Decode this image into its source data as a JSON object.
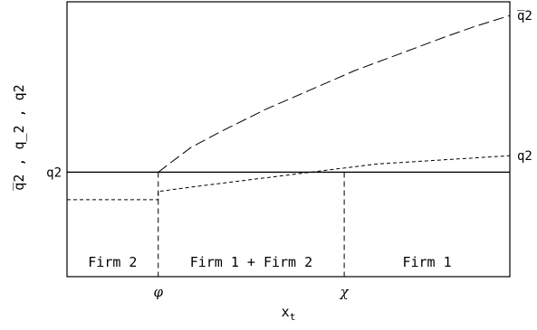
{
  "chart_data": {
    "type": "line",
    "title": "",
    "xlabel": "x",
    "xlabel_sub": "t",
    "ylabel": "q̅2 , q̲2 , q2",
    "xlim": [
      0,
      1
    ],
    "ylim": [
      0,
      1
    ],
    "grid": false,
    "x_ticks": [
      {
        "x": 0.206,
        "label": "φ"
      },
      {
        "x": 0.626,
        "label": "χ"
      }
    ],
    "horizontal_level": {
      "y": 0.38,
      "label": "q2"
    },
    "right_labels": [
      {
        "series": "upper",
        "label": "q̅2"
      },
      {
        "series": "lower",
        "label": "q2"
      }
    ],
    "regions": [
      {
        "label": "Firm 2",
        "x_from": 0.0,
        "x_to": 0.206
      },
      {
        "label": "Firm 1 + Firm 2",
        "x_from": 0.206,
        "x_to": 0.626
      },
      {
        "label": "Firm 1",
        "x_from": 0.626,
        "x_to": 1.0
      }
    ],
    "series": [
      {
        "key": "upper",
        "style": "long-dash",
        "x": [
          0.206,
          0.23,
          0.28,
          0.35,
          0.45,
          0.55,
          0.65,
          0.75,
          0.85,
          0.92,
          1.0
        ],
        "y": [
          0.38,
          0.41,
          0.47,
          0.53,
          0.61,
          0.68,
          0.75,
          0.81,
          0.87,
          0.91,
          0.95
        ]
      },
      {
        "key": "lower",
        "style": "short-dash",
        "x": [
          0.0,
          0.206,
          0.206,
          0.3,
          0.4,
          0.5,
          0.6,
          0.7,
          0.8,
          0.9,
          1.0
        ],
        "y": [
          0.28,
          0.28,
          0.31,
          0.33,
          0.35,
          0.37,
          0.39,
          0.41,
          0.42,
          0.43,
          0.44
        ]
      }
    ]
  }
}
